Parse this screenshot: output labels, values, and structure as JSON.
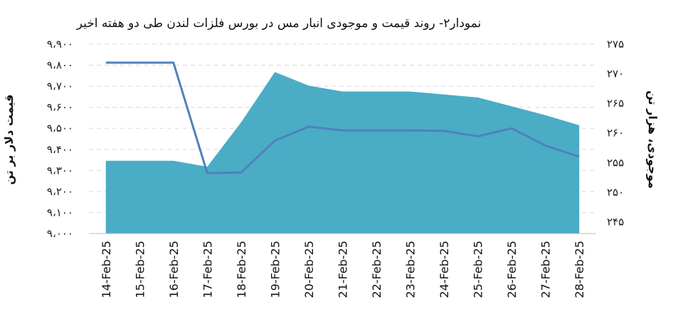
{
  "chart_data": {
    "type": "line",
    "title": "نمودار۲- روند قیمت و موجودی انبار مس در بورس فلزات لندن طی دو هفته اخیر",
    "ylabel_left": "قیمت دلار بر تن",
    "ylabel_right": "موجودی، هزار تن",
    "categories": [
      "14-Feb-25",
      "15-Feb-25",
      "16-Feb-25",
      "17-Feb-25",
      "18-Feb-25",
      "19-Feb-25",
      "20-Feb-25",
      "21-Feb-25",
      "22-Feb-25",
      "23-Feb-25",
      "24-Feb-25",
      "25-Feb-25",
      "26-Feb-25",
      "27-Feb-25",
      "28-Feb-25"
    ],
    "left_axis": {
      "ylim": [
        9000,
        9900
      ],
      "ticks": [
        "۹،۰۰۰",
        "۹،۱۰۰",
        "۹،۲۰۰",
        "۹،۳۰۰",
        "۹،۴۰۰",
        "۹،۵۰۰",
        "۹،۶۰۰",
        "۹،۷۰۰",
        "۹،۸۰۰",
        "۹،۹۰۰"
      ]
    },
    "right_axis": {
      "ylim": [
        243,
        275
      ],
      "ticks": [
        "۲۴۵",
        "۲۵۰",
        "۲۵۵",
        "۲۶۰",
        "۲۶۵",
        "۲۷۰",
        "۲۷۵"
      ]
    },
    "series": [
      {
        "axis": "right",
        "kind": "area",
        "color": "#4bacc6",
        "values": [
          255.3,
          255.3,
          255.3,
          254.3,
          261.8,
          270.3,
          268.0,
          267.0,
          267.0,
          267.0,
          266.5,
          266.0,
          264.5,
          263.0,
          261.3
        ]
      },
      {
        "axis": "left",
        "kind": "line",
        "color": "#4f81bd",
        "values": [
          9812,
          9812,
          9812,
          9287,
          9290,
          9442,
          9508,
          9490,
          9490,
          9490,
          9488,
          9462,
          9500,
          9418,
          9365
        ]
      }
    ]
  }
}
